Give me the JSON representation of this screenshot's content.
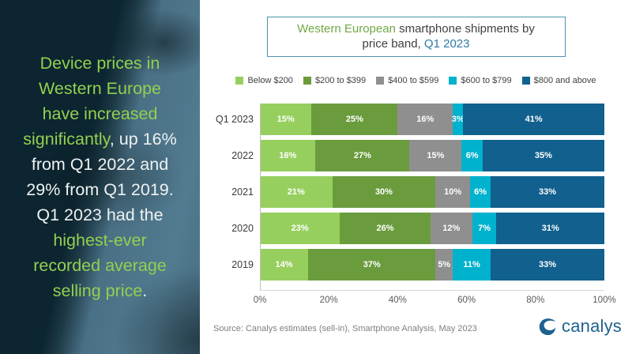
{
  "left_panel": {
    "lines": [
      [
        {
          "t": "Device prices in",
          "c": "green"
        }
      ],
      [
        {
          "t": "Western Europe",
          "c": "green"
        }
      ],
      [
        {
          "t": "have increased",
          "c": "green"
        }
      ],
      [
        {
          "t": "significantly",
          "c": "green"
        },
        {
          "t": ", up 16%",
          "c": "white"
        }
      ],
      [
        {
          "t": "from Q1 2022 and",
          "c": "white"
        }
      ],
      [
        {
          "t": "29% from Q1 2019.",
          "c": "white"
        }
      ],
      [
        {
          "t": "Q1 2023 had the",
          "c": "white"
        }
      ],
      [
        {
          "t": "highest-ever",
          "c": "green"
        }
      ],
      [
        {
          "t": "recorded average",
          "c": "green"
        }
      ],
      [
        {
          "t": "selling price",
          "c": "green"
        },
        {
          "t": ".",
          "c": "white"
        }
      ]
    ]
  },
  "title": {
    "lines": [
      [
        {
          "t": "Western European ",
          "c": "green"
        },
        {
          "t": "smartphone shipments by",
          "c": "dark"
        }
      ],
      [
        {
          "t": "price band, ",
          "c": "dark"
        },
        {
          "t": "Q1 2023",
          "c": "blue"
        }
      ]
    ]
  },
  "chart_data": {
    "type": "bar",
    "stacked": true,
    "orientation": "horizontal",
    "title": "Western European smartphone shipments by price band, Q1 2023",
    "categories": [
      "Q1 2023",
      "2022",
      "2021",
      "2020",
      "2019"
    ],
    "series": [
      {
        "name": "Below $200",
        "color": "#97cf5f",
        "values": [
          15,
          16,
          21,
          23,
          14
        ]
      },
      {
        "name": "$200 to $399",
        "color": "#6a9c3d",
        "values": [
          25,
          27,
          30,
          26,
          37
        ]
      },
      {
        "name": "$400 to $599",
        "color": "#8f8f8f",
        "values": [
          16,
          15,
          10,
          12,
          5
        ]
      },
      {
        "name": "$600 to $799",
        "color": "#00b2cd",
        "values": [
          3,
          6,
          6,
          7,
          11
        ]
      },
      {
        "name": "$800 and above",
        "color": "#11608d",
        "values": [
          41,
          35,
          33,
          31,
          33
        ]
      }
    ],
    "value_suffix": "%",
    "x_ticks": [
      "0%",
      "20%",
      "40%",
      "60%",
      "80%",
      "100%"
    ],
    "xlim": [
      0,
      100
    ],
    "legend_position": "top",
    "grid": false
  },
  "footer": {
    "source": "Source: Canalys estimates (sell-in), Smartphone Analysis, May 2023",
    "logo_text": "canalys",
    "logo_color": "#1e6290"
  },
  "colors": {
    "panel_green_text": "#92d050",
    "panel_white_text": "#eef2f2",
    "panel_background": "#0c2530",
    "title_green": "#70a845",
    "title_dark": "#404040",
    "title_blue": "#2e7aa8",
    "title_border": "#4d93ad",
    "axis_text": "#595959",
    "source_text": "#7f7f7f"
  }
}
